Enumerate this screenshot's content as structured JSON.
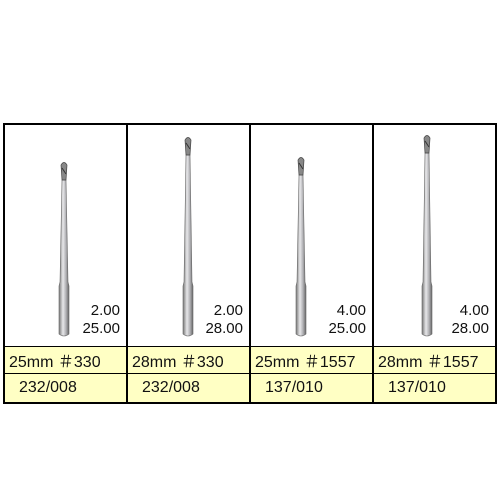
{
  "panels": [
    {
      "size": "2.00",
      "length": "25.00",
      "name": "25mm ＃330",
      "code": "232/008"
    },
    {
      "size": "2.00",
      "length": "28.00",
      "name": "28mm ＃330",
      "code": "232/008"
    },
    {
      "size": "4.00",
      "length": "25.00",
      "name": "25mm ＃1557",
      "code": "137/010"
    },
    {
      "size": "4.00",
      "length": "28.00",
      "name": "28mm ＃1557",
      "code": "137/010"
    }
  ]
}
